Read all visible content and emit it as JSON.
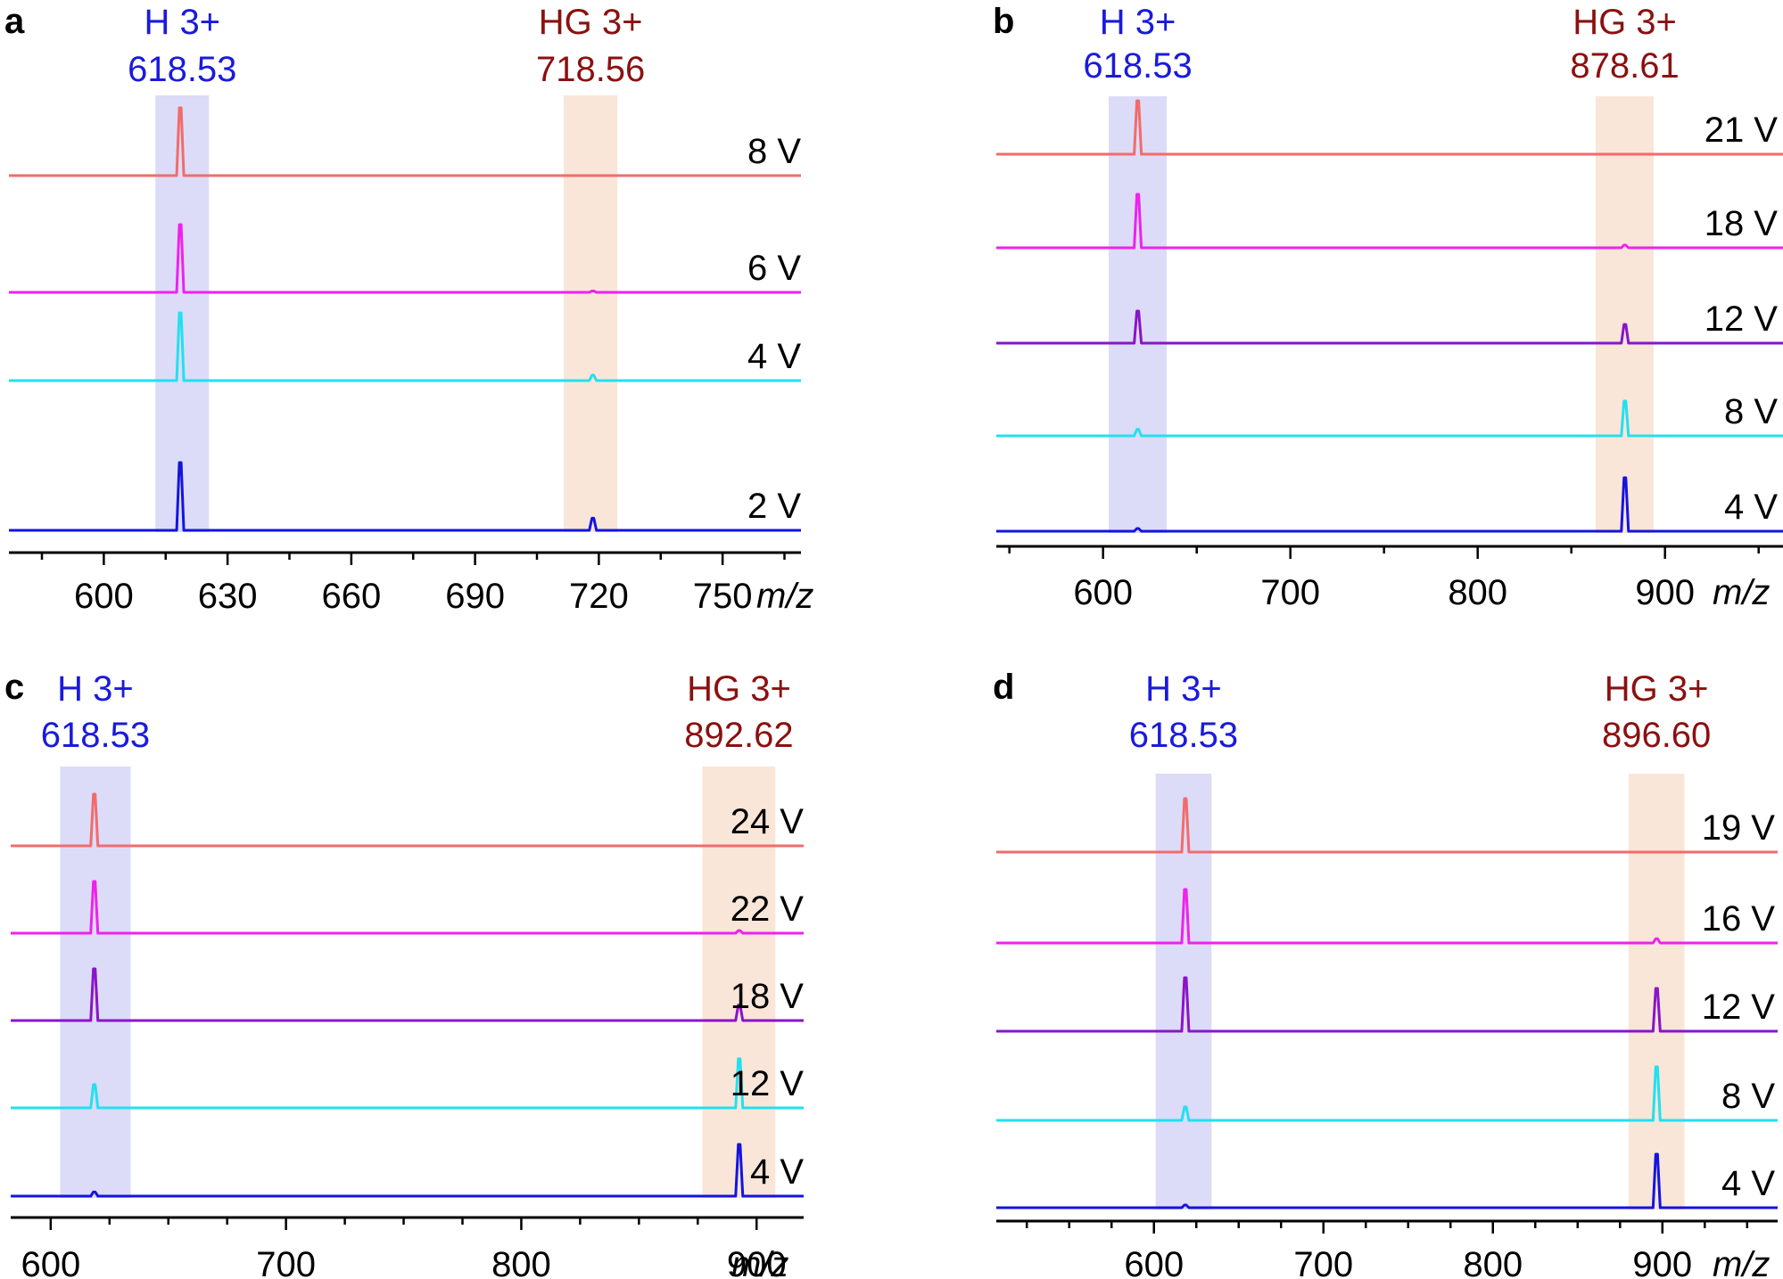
{
  "colors": {
    "host_text": "#1a1adc",
    "guest_text": "#8b1010",
    "host_band": "#dcdcf8",
    "guest_band": "#f9e6d8",
    "axis": "#000000"
  },
  "chart_data": [
    {
      "type": "line",
      "panel": "a",
      "xlabel": "m/z",
      "xlim": [
        577,
        769
      ],
      "major_ticks": [
        600,
        630,
        660,
        690,
        720,
        750
      ],
      "minor_step": 15,
      "host": {
        "label": "H 3+",
        "value": "618.53",
        "mz": 618.53,
        "band": [
          612.5,
          625.5
        ]
      },
      "guest": {
        "label": "HG 3+",
        "value": "718.56",
        "mz": 718.56,
        "band": [
          711.5,
          724.5
        ]
      },
      "series": [
        {
          "name": "8 V",
          "color": "#f26b6b",
          "host_intensity": 1.0,
          "guest_intensity": 0.0
        },
        {
          "name": "6 V",
          "color": "#ee22ee",
          "host_intensity": 1.0,
          "guest_intensity": 0.02
        },
        {
          "name": "4 V",
          "color": "#22e0f0",
          "host_intensity": 1.0,
          "guest_intensity": 0.08
        },
        {
          "name": "2 V",
          "color": "#1414e0",
          "host_intensity": 1.0,
          "guest_intensity": 0.18
        }
      ]
    },
    {
      "type": "line",
      "panel": "b",
      "xlabel": "m/z",
      "xlim": [
        543,
        963
      ],
      "major_ticks": [
        600,
        700,
        800,
        900
      ],
      "minor_step": 50,
      "host": {
        "label": "H 3+",
        "value": "618.53",
        "mz": 618.53,
        "band": [
          603,
          634
        ]
      },
      "guest": {
        "label": "HG 3+",
        "value": "878.61",
        "mz": 878.61,
        "band": [
          863,
          894
        ]
      },
      "series": [
        {
          "name": "21 V",
          "color": "#f26b6b",
          "host_intensity": 1.0,
          "guest_intensity": 0.0
        },
        {
          "name": "18 V",
          "color": "#ee22ee",
          "host_intensity": 1.0,
          "guest_intensity": 0.05
        },
        {
          "name": "12 V",
          "color": "#8a14c8",
          "host_intensity": 0.6,
          "guest_intensity": 0.35
        },
        {
          "name": "8 V",
          "color": "#22e0f0",
          "host_intensity": 0.12,
          "guest_intensity": 0.65
        },
        {
          "name": "4 V",
          "color": "#1414e0",
          "host_intensity": 0.05,
          "guest_intensity": 1.0
        }
      ]
    },
    {
      "type": "line",
      "panel": "c",
      "xlabel": "m/z",
      "xlim": [
        583,
        920
      ],
      "major_ticks": [
        600,
        700,
        800,
        900
      ],
      "minor_step": 25,
      "host": {
        "label": "H 3+",
        "value": "618.53",
        "mz": 618.53,
        "band": [
          604,
          634
        ]
      },
      "guest": {
        "label": "HG 3+",
        "value": "892.62",
        "mz": 892.62,
        "band": [
          877,
          908
        ]
      },
      "series": [
        {
          "name": "24 V",
          "color": "#f26b6b",
          "host_intensity": 1.0,
          "guest_intensity": 0.0
        },
        {
          "name": "22 V",
          "color": "#ee22ee",
          "host_intensity": 1.0,
          "guest_intensity": 0.05
        },
        {
          "name": "18 V",
          "color": "#8a14c8",
          "host_intensity": 1.0,
          "guest_intensity": 0.3
        },
        {
          "name": "12 V",
          "color": "#22e0f0",
          "host_intensity": 0.45,
          "guest_intensity": 0.95
        },
        {
          "name": "4 V",
          "color": "#1414e0",
          "host_intensity": 0.08,
          "guest_intensity": 1.0
        }
      ]
    },
    {
      "type": "line",
      "panel": "d",
      "xlabel": "m/z",
      "xlim": [
        507,
        968
      ],
      "major_ticks": [
        600,
        700,
        800,
        900
      ],
      "minor_step": 25,
      "host": {
        "label": "H 3+",
        "value": "618.53",
        "mz": 618.53,
        "band": [
          601,
          634
        ]
      },
      "guest": {
        "label": "HG 3+",
        "value": "896.60",
        "mz": 896.6,
        "band": [
          880,
          913
        ]
      },
      "series": [
        {
          "name": "19 V",
          "color": "#f26b6b",
          "host_intensity": 1.0,
          "guest_intensity": 0.0
        },
        {
          "name": "16 V",
          "color": "#ee22ee",
          "host_intensity": 1.0,
          "guest_intensity": 0.08
        },
        {
          "name": "12 V",
          "color": "#8a14c8",
          "host_intensity": 1.0,
          "guest_intensity": 0.8
        },
        {
          "name": "8 V",
          "color": "#22e0f0",
          "host_intensity": 0.25,
          "guest_intensity": 1.0
        },
        {
          "name": "4 V",
          "color": "#1414e0",
          "host_intensity": 0.05,
          "guest_intensity": 1.0
        }
      ]
    }
  ]
}
